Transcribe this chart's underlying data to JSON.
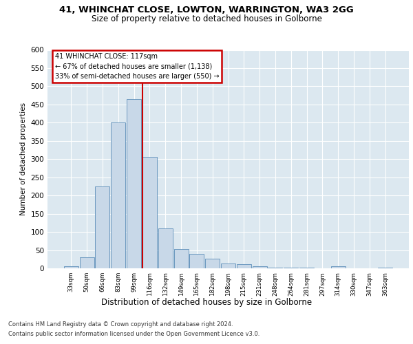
{
  "title_line1": "41, WHINCHAT CLOSE, LOWTON, WARRINGTON, WA3 2GG",
  "title_line2": "Size of property relative to detached houses in Golborne",
  "xlabel": "Distribution of detached houses by size in Golborne",
  "ylabel": "Number of detached properties",
  "categories": [
    "33sqm",
    "50sqm",
    "66sqm",
    "83sqm",
    "99sqm",
    "116sqm",
    "132sqm",
    "149sqm",
    "165sqm",
    "182sqm",
    "198sqm",
    "215sqm",
    "231sqm",
    "248sqm",
    "264sqm",
    "281sqm",
    "297sqm",
    "314sqm",
    "330sqm",
    "347sqm",
    "363sqm"
  ],
  "values": [
    5,
    30,
    225,
    400,
    465,
    307,
    110,
    52,
    40,
    27,
    13,
    12,
    5,
    2,
    1,
    1,
    0,
    5,
    0,
    0,
    2
  ],
  "bar_color": "#c8d8e8",
  "bar_edge_color": "#5b8db8",
  "vline_index": 5,
  "vline_color": "#cc0000",
  "ylim": [
    0,
    600
  ],
  "yticks": [
    0,
    50,
    100,
    150,
    200,
    250,
    300,
    350,
    400,
    450,
    500,
    550,
    600
  ],
  "annotation_line1": "41 WHINCHAT CLOSE: 117sqm",
  "annotation_line2": "← 67% of detached houses are smaller (1,138)",
  "annotation_line3": "33% of semi-detached houses are larger (550) →",
  "annotation_box_color": "#cc0000",
  "background_color": "#dce8f0",
  "footer_line1": "Contains HM Land Registry data © Crown copyright and database right 2024.",
  "footer_line2": "Contains public sector information licensed under the Open Government Licence v3.0."
}
